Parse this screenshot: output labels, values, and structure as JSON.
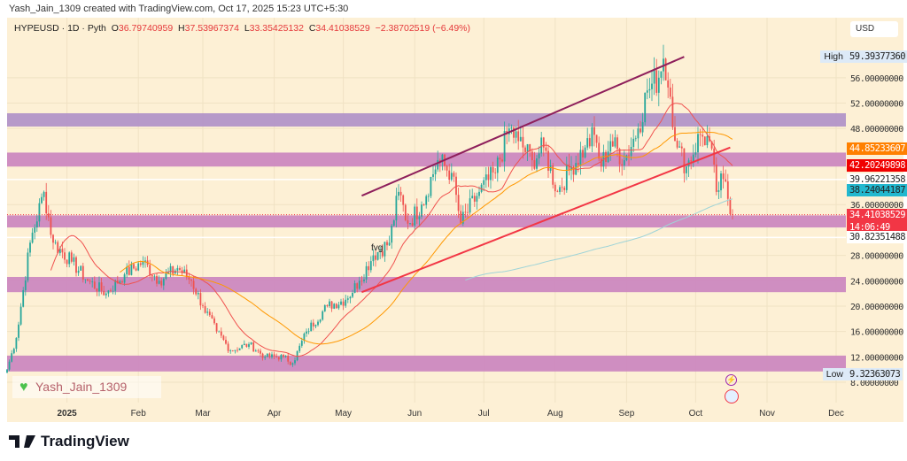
{
  "credit": "Yash_Jain_1309 created with TradingView.com, Oct 17, 2025 15:23 UTC+5:30",
  "legend": {
    "symbol": "HYPEUSD · 1D · Pyth",
    "o_label": "O",
    "o": "36.79740959",
    "h_label": "H",
    "h": "37.53967374",
    "l_label": "L",
    "l": "33.35425132",
    "c_label": "C",
    "c": "34.41038529",
    "change": "−2.38702519 (−6.49%)"
  },
  "currency": "USD",
  "watermark": "Yash_Jain_1309",
  "brand": "TradingView",
  "annotation": "fvg",
  "colors": {
    "up": "#26a69a",
    "down": "#ef5350",
    "bg": "#fdf0d5",
    "zone_top": "#b294c8",
    "zone": "#cc88c0",
    "channel": "#8e1f5b",
    "trend": "#f23645",
    "ma_fast": "#f0524f",
    "ma_mid": "#ff9800",
    "ma_slow": "#9fd4d8"
  },
  "chart_data": {
    "type": "candlestick",
    "start_date": "2024-12-06",
    "ylim": [
      4,
      62
    ],
    "y_ticks": [
      "8.00000000",
      "12.00000000",
      "16.00000000",
      "20.00000000",
      "24.00000000",
      "28.00000000",
      "36.00000000",
      "48.00000000",
      "52.00000000",
      "56.00000000"
    ],
    "y_tick_values": [
      8,
      12,
      16,
      20,
      24,
      28,
      36,
      48,
      52,
      56
    ],
    "x_ticks": [
      {
        "label": "2025",
        "day": 26
      },
      {
        "label": "Feb",
        "day": 57
      },
      {
        "label": "Mar",
        "day": 85
      },
      {
        "label": "Apr",
        "day": 116
      },
      {
        "label": "May",
        "day": 146
      },
      {
        "label": "Jun",
        "day": 177
      },
      {
        "label": "Jul",
        "day": 207
      },
      {
        "label": "Aug",
        "day": 238
      },
      {
        "label": "Sep",
        "day": 269
      },
      {
        "label": "Oct",
        "day": 299
      },
      {
        "label": "Nov",
        "day": 330
      },
      {
        "label": "Dec",
        "day": 360
      }
    ],
    "close_keypoints": [
      [
        0,
        10
      ],
      [
        4,
        15
      ],
      [
        10,
        30
      ],
      [
        16,
        38
      ],
      [
        20,
        30
      ],
      [
        28,
        27
      ],
      [
        35,
        24
      ],
      [
        43,
        22
      ],
      [
        51,
        25
      ],
      [
        59,
        27
      ],
      [
        66,
        24
      ],
      [
        74,
        26
      ],
      [
        80,
        24
      ],
      [
        85,
        20
      ],
      [
        91,
        16
      ],
      [
        97,
        13
      ],
      [
        105,
        14
      ],
      [
        112,
        12
      ],
      [
        120,
        12
      ],
      [
        124,
        11
      ],
      [
        130,
        16
      ],
      [
        139,
        20
      ],
      [
        147,
        21
      ],
      [
        153,
        24
      ],
      [
        159,
        28
      ],
      [
        166,
        30
      ],
      [
        170,
        38
      ],
      [
        174,
        33
      ],
      [
        180,
        36
      ],
      [
        187,
        43
      ],
      [
        193,
        41
      ],
      [
        197,
        33
      ],
      [
        205,
        38
      ],
      [
        212,
        41
      ],
      [
        218,
        48
      ],
      [
        222,
        46
      ],
      [
        228,
        43
      ],
      [
        233,
        45
      ],
      [
        239,
        38
      ],
      [
        245,
        42
      ],
      [
        251,
        45
      ],
      [
        255,
        47
      ],
      [
        258,
        42
      ],
      [
        262,
        46
      ],
      [
        268,
        43
      ],
      [
        274,
        48
      ],
      [
        278,
        54
      ],
      [
        283,
        56
      ],
      [
        285,
        59
      ],
      [
        288,
        53
      ],
      [
        291,
        45
      ],
      [
        295,
        42
      ],
      [
        301,
        47
      ],
      [
        305,
        46
      ],
      [
        308,
        38
      ],
      [
        311,
        40
      ],
      [
        315,
        34.41
      ]
    ],
    "zones": [
      {
        "from": 48.3,
        "to": 50.4,
        "style": "zone_top"
      },
      {
        "from": 42.0,
        "to": 44.2,
        "style": "zone"
      },
      {
        "from": 32.4,
        "to": 34.3,
        "style": "zone"
      },
      {
        "from": 22.2,
        "to": 24.6,
        "style": "zone"
      },
      {
        "from": 9.7,
        "to": 12.2,
        "style": "zone"
      }
    ],
    "channel_line": [
      [
        154,
        37.4
      ],
      [
        294,
        59.3
      ]
    ],
    "trend_line": [
      [
        154,
        22.2
      ],
      [
        314,
        45.0
      ]
    ],
    "horizontal_lines": [
      39.96221358,
      30.82351488
    ],
    "moving_averages": [
      {
        "period": 20,
        "style": "ma_fast"
      },
      {
        "period": 50,
        "style": "ma_mid"
      },
      {
        "period": 200,
        "style": "ma_slow"
      }
    ],
    "price_tags": [
      {
        "label": "High",
        "value": "59.39377360",
        "bg": "#ddeaf7",
        "fg": "#222",
        "price": 59.39
      },
      {
        "value": "44.85233607",
        "bg": "#ff8000",
        "fg": "#fff",
        "price": 44.85
      },
      {
        "value": "42.20249898",
        "bg": "#f00000",
        "fg": "#fff",
        "price": 42.2
      },
      {
        "value": "39.96221358",
        "bg": "#ffffff",
        "fg": "#222",
        "price": 39.96
      },
      {
        "value": "38.24044187",
        "bg": "#22b8cf",
        "fg": "#222",
        "price": 38.24
      },
      {
        "value": "34.41038529",
        "bg": "#f23645",
        "fg": "#fff",
        "price": 34.41,
        "sub": "14:06:49"
      },
      {
        "value": "30.82351488",
        "bg": "#ffffff",
        "fg": "#222",
        "price": 30.82
      },
      {
        "label": "Low",
        "value": "9.32363073",
        "bg": "#ddeaf7",
        "fg": "#222",
        "price": 9.32
      }
    ]
  }
}
